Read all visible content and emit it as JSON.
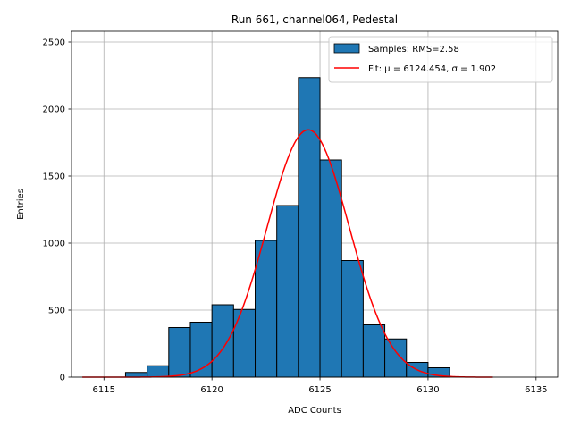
{
  "chart_data": {
    "type": "bar",
    "title": "Run 661, channel064, Pedestal",
    "xlabel": "ADC Counts",
    "ylabel": "Entries",
    "xlim": [
      6113.5,
      6136
    ],
    "ylim": [
      0,
      2580
    ],
    "xticks": [
      6115,
      6120,
      6125,
      6130,
      6135
    ],
    "yticks": [
      0,
      500,
      1000,
      1500,
      2000,
      2500
    ],
    "grid": true,
    "legend_position": "top-right",
    "histogram": {
      "name": "Samples: RMS=2.58",
      "color": "#1f77b4",
      "edge_color": "#000000",
      "bins": [
        {
          "x0": 6116,
          "x1": 6117,
          "count": 35
        },
        {
          "x0": 6117,
          "x1": 6118,
          "count": 85
        },
        {
          "x0": 6118,
          "x1": 6119,
          "count": 370
        },
        {
          "x0": 6119,
          "x1": 6120,
          "count": 410
        },
        {
          "x0": 6120,
          "x1": 6121,
          "count": 540
        },
        {
          "x0": 6121,
          "x1": 6122,
          "count": 505
        },
        {
          "x0": 6122,
          "x1": 6123,
          "count": 1020
        },
        {
          "x0": 6123,
          "x1": 6124,
          "count": 1280
        },
        {
          "x0": 6124,
          "x1": 6125,
          "count": 2235
        },
        {
          "x0": 6125,
          "x1": 6126,
          "count": 1620
        },
        {
          "x0": 6126,
          "x1": 6127,
          "count": 870
        },
        {
          "x0": 6127,
          "x1": 6128,
          "count": 390
        },
        {
          "x0": 6128,
          "x1": 6129,
          "count": 285
        },
        {
          "x0": 6129,
          "x1": 6130,
          "count": 110
        },
        {
          "x0": 6130,
          "x1": 6131,
          "count": 70
        }
      ]
    },
    "fit": {
      "name": "Fit: μ = 6124.454, σ = 1.902",
      "color": "#ff0000",
      "mu": 6124.454,
      "sigma": 1.902,
      "amplitude": 1845,
      "x_range": [
        6114,
        6133
      ]
    }
  }
}
